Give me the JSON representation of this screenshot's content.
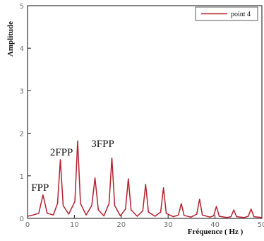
{
  "chart_data": {
    "type": "line",
    "title": "",
    "xlabel": "Fréquence ( Hz )",
    "ylabel": "Amplitude",
    "xlim": [
      0,
      50
    ],
    "ylim": [
      0,
      5
    ],
    "xticks": [
      0,
      10,
      20,
      30,
      40,
      50
    ],
    "yticks": [
      0,
      1,
      2,
      3,
      4,
      5
    ],
    "grid": false,
    "legend_position": "top-right",
    "series": [
      {
        "name": "point 4",
        "color": "#b3202e",
        "x": [
          0,
          1.2,
          2.4,
          3.3,
          4.2,
          5.5,
          6.4,
          7.0,
          7.6,
          8.8,
          10.1,
          10.7,
          11.3,
          12.5,
          13.7,
          14.4,
          15.1,
          16.3,
          17.4,
          18.0,
          18.6,
          19.8,
          20.9,
          21.5,
          22.1,
          23.4,
          24.6,
          25.2,
          25.8,
          27.2,
          28.4,
          29.0,
          29.6,
          31.1,
          32.2,
          32.8,
          33.4,
          34.9,
          36.1,
          36.7,
          37.3,
          38.9,
          39.7,
          40.3,
          40.9,
          42.5,
          43.4,
          44.0,
          44.6,
          46.2,
          47.1,
          47.7,
          48.3,
          50.0
        ],
        "y": [
          0.05,
          0.08,
          0.12,
          0.55,
          0.12,
          0.08,
          0.35,
          1.38,
          0.3,
          0.1,
          0.4,
          1.82,
          0.35,
          0.08,
          0.3,
          0.95,
          0.2,
          0.06,
          0.35,
          1.42,
          0.3,
          0.06,
          0.22,
          0.93,
          0.2,
          0.05,
          0.18,
          0.8,
          0.15,
          0.05,
          0.15,
          0.72,
          0.12,
          0.04,
          0.08,
          0.35,
          0.07,
          0.03,
          0.1,
          0.45,
          0.08,
          0.03,
          0.06,
          0.28,
          0.05,
          0.02,
          0.04,
          0.2,
          0.04,
          0.02,
          0.05,
          0.22,
          0.04,
          0.02
        ]
      }
    ],
    "annotations": [
      {
        "text": "FPP",
        "x": 0.8,
        "y": 0.65
      },
      {
        "text": "2FPP",
        "x": 4.8,
        "y": 1.48
      },
      {
        "text": "3FPP",
        "x": 13.6,
        "y": 1.68
      }
    ],
    "colors": {
      "frame": "#222222",
      "tick_label": "#6f6f6f",
      "line": "#b3202e"
    }
  }
}
